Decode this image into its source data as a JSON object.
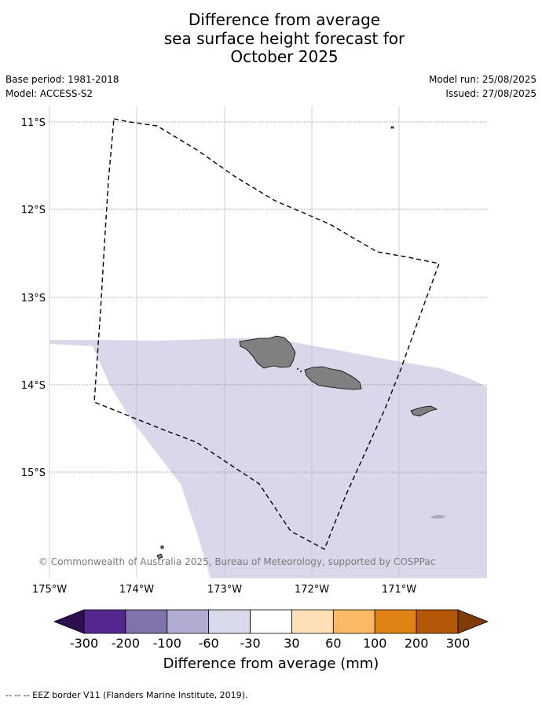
{
  "title_lines": [
    "Difference from average",
    "sea surface height forecast for",
    "October 2025"
  ],
  "meta": {
    "base_period": "Base period: 1981-2018",
    "model": "Model: ACCESS-S2",
    "model_run": "Model run: 25/08/2025",
    "issued": "Issued: 27/08/2025"
  },
  "map": {
    "lat_labels": [
      "11°S",
      "12°S",
      "13°S",
      "14°S",
      "15°S"
    ],
    "lon_labels": [
      "175°W",
      "174°W",
      "173°W",
      "172°W",
      "171°W"
    ],
    "colors": {
      "ocean_anomaly": "#d8d8ea",
      "land": "#808080",
      "eez_border": "#000000",
      "gridline": "#b0b0b0"
    },
    "copyright": "© Commonwealth of Australia 2025, Bureau of Meteorology, supported by COSPPac"
  },
  "colorbar": {
    "title": "Difference from average (mm)",
    "tick_labels": [
      "-300",
      "-200",
      "-100",
      "-60",
      "-30",
      "30",
      "60",
      "100",
      "200",
      "300"
    ],
    "colors": {
      "extend_low": "#2d0e4f",
      "bins": [
        "#54278f",
        "#8073ac",
        "#b2abd2",
        "#d8daeb",
        "#ffffff",
        "#fee0b6",
        "#fdb863",
        "#e08214",
        "#b35806"
      ],
      "extend_high": "#7f3b08"
    }
  },
  "footnote": "--  --  -- EEZ border V11 (Flanders Marine Institute, 2019)."
}
